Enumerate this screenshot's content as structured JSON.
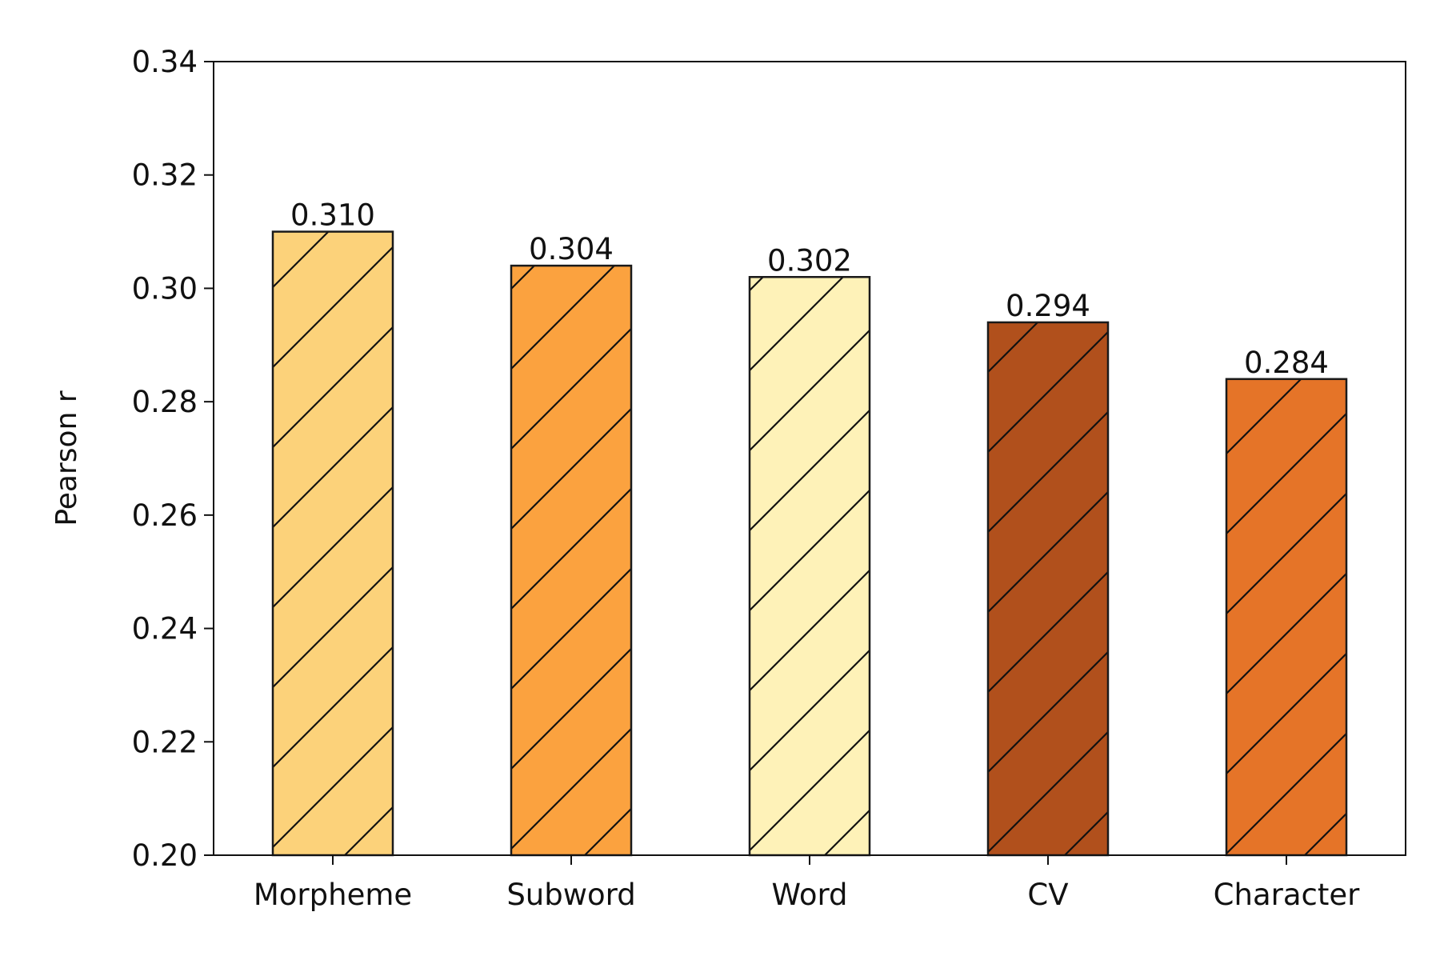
{
  "chart_data": {
    "type": "bar",
    "title": "",
    "xlabel": "",
    "ylabel": "Pearson r",
    "ylim": [
      0.2,
      0.34
    ],
    "yticks": [
      "0.20",
      "0.22",
      "0.24",
      "0.26",
      "0.28",
      "0.30",
      "0.32",
      "0.34"
    ],
    "categories": [
      "Morpheme",
      "Subword",
      "Word",
      "CV",
      "Character"
    ],
    "values": [
      0.31,
      0.304,
      0.302,
      0.294,
      0.284
    ],
    "value_labels": [
      "0.310",
      "0.304",
      "0.302",
      "0.294",
      "0.284"
    ],
    "colors": [
      "#fcd27a",
      "#fba23f",
      "#fef2b8",
      "#b1501c",
      "#e57428"
    ],
    "hatch": "diagonal",
    "grid": false,
    "legend": "none"
  }
}
